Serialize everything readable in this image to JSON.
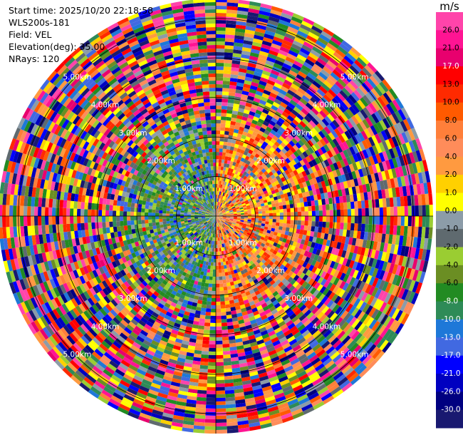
{
  "header": {
    "start_time": "Start time: 2025/10/20 22:18:58",
    "instrument": "WLS200s-181",
    "field": "Field: VEL",
    "elevation": "Elevation(deg): 35.00",
    "nrays": "NRays: 120"
  },
  "colorbar": {
    "unit": "m/s",
    "ticks": [
      "26.0",
      "21.0",
      "17.0",
      "13.0",
      "10.0",
      "8.0",
      "6.0",
      "4.0",
      "2.0",
      "1.0",
      "0.0",
      "-1.0",
      "-2.0",
      "-4.0",
      "-6.0",
      "-8.0",
      "-10.0",
      "-13.0",
      "-17.0",
      "-21.0",
      "-26.0",
      "-30.0"
    ],
    "colors": [
      "#ff44aa",
      "#ff1493",
      "#e8006e",
      "#ff0000",
      "#ff2a00",
      "#ff5a00",
      "#ff7f3a",
      "#ff8c5a",
      "#ff9a40",
      "#ffd000",
      "#ffff00",
      "#8c9ca8",
      "#5f6a6f",
      "#9acd32",
      "#6b8e23",
      "#228b22",
      "#2e8b57",
      "#1e78d8",
      "#4169e1",
      "#0000ff",
      "#0000c0",
      "#000080",
      "#191970"
    ]
  },
  "chart_data": {
    "type": "polar-ppi",
    "field": "VEL",
    "nrays": 120,
    "elevation_deg": 35.0,
    "ring_labels": [
      "1.00km",
      "2.00km",
      "3.00km",
      "4.00km",
      "5.00km"
    ],
    "range_max_km": 5.5
  }
}
